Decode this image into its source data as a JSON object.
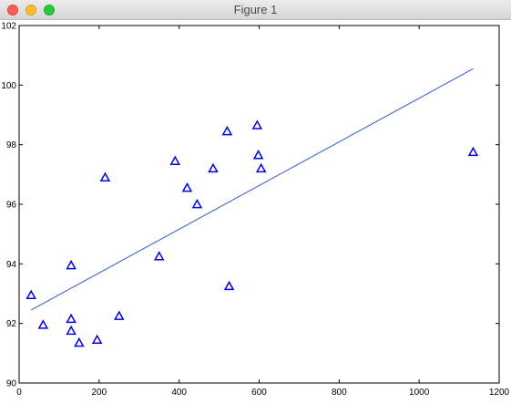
{
  "window": {
    "title": "Figure 1",
    "controls": [
      "close-icon",
      "minimize-icon",
      "maximize-icon"
    ]
  },
  "chart_data": {
    "type": "scatter",
    "title": "",
    "xlabel": "",
    "ylabel": "",
    "xlim": [
      0,
      1200
    ],
    "ylim": [
      90,
      102
    ],
    "xticks": [
      0,
      200,
      400,
      600,
      800,
      1000,
      1200
    ],
    "yticks": [
      90,
      92,
      94,
      96,
      98,
      100,
      102
    ],
    "grid": false,
    "marker": "triangle-up-hollow",
    "colors": {
      "points": "#0000ff",
      "line": "#2a5bd7"
    },
    "series": [
      {
        "type": "scatter",
        "points": [
          [
            30,
            92.95
          ],
          [
            60,
            91.95
          ],
          [
            130,
            93.95
          ],
          [
            130,
            92.15
          ],
          [
            130,
            91.75
          ],
          [
            150,
            91.35
          ],
          [
            195,
            91.45
          ],
          [
            215,
            96.9
          ],
          [
            250,
            92.25
          ],
          [
            350,
            94.25
          ],
          [
            390,
            97.45
          ],
          [
            420,
            96.55
          ],
          [
            445,
            96.0
          ],
          [
            485,
            97.2
          ],
          [
            520,
            98.45
          ],
          [
            525,
            93.25
          ],
          [
            595,
            98.65
          ],
          [
            598,
            97.65
          ],
          [
            605,
            97.2
          ],
          [
            1135,
            97.75
          ]
        ]
      },
      {
        "type": "line",
        "points": [
          [
            30,
            92.45
          ],
          [
            1135,
            100.55
          ]
        ]
      }
    ]
  }
}
